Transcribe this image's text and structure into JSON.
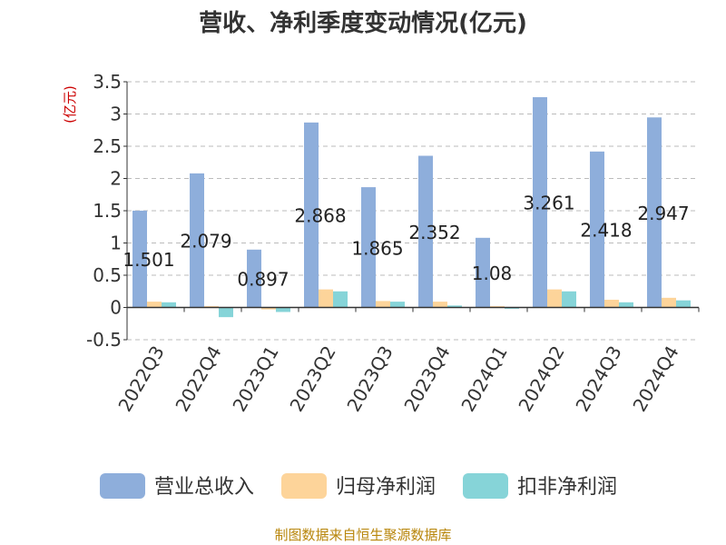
{
  "chart_data": {
    "type": "bar",
    "title": "营收、净利季度变动情况(亿元)",
    "ylabel": "(亿元)",
    "xlabel": "",
    "ylim": [
      -0.5,
      3.5
    ],
    "yticks": [
      "-0.5",
      "0",
      "0.5",
      "1",
      "1.5",
      "2",
      "2.5",
      "3",
      "3.5"
    ],
    "ytick_values": [
      -0.5,
      0,
      0.5,
      1,
      1.5,
      2,
      2.5,
      3,
      3.5
    ],
    "grid": "horizontal-dashed",
    "legend_position": "bottom",
    "categories": [
      "2022Q3",
      "2022Q4",
      "2023Q1",
      "2023Q2",
      "2023Q3",
      "2023Q4",
      "2024Q1",
      "2024Q2",
      "2024Q3",
      "2024Q4"
    ],
    "series": [
      {
        "name": "营业总收入",
        "color": "#8eaedb",
        "values": [
          1.501,
          2.079,
          0.897,
          2.868,
          1.865,
          2.352,
          1.08,
          3.261,
          2.418,
          2.947
        ],
        "labels": [
          "1.501",
          "2.079",
          "0.897",
          "2.868",
          "1.865",
          "2.352",
          "1.08",
          "3.261",
          "2.418",
          "2.947"
        ]
      },
      {
        "name": "归母净利润",
        "color": "#fdd49a",
        "values": [
          0.09,
          0.02,
          -0.03,
          0.28,
          0.1,
          0.09,
          0.02,
          0.28,
          0.12,
          0.15
        ]
      },
      {
        "name": "扣非净利润",
        "color": "#86d4d8",
        "values": [
          0.08,
          -0.15,
          -0.07,
          0.25,
          0.09,
          0.03,
          -0.02,
          0.25,
          0.08,
          0.11
        ]
      }
    ],
    "source": "制图数据来自恒生聚源数据库"
  }
}
